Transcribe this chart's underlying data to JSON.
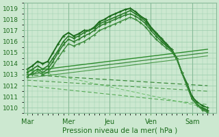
{
  "title": "",
  "xlabel": "Pression niveau de la mer( hPa )",
  "ylabel": "",
  "ylim": [
    1009.5,
    1019.5
  ],
  "yticks": [
    1010,
    1011,
    1012,
    1013,
    1014,
    1015,
    1016,
    1017,
    1018,
    1019
  ],
  "xtick_labels": [
    "Mar",
    "Mer",
    "Jeu",
    "Ven",
    "Sam"
  ],
  "xtick_positions": [
    0,
    48,
    96,
    144,
    192
  ],
  "xlim": [
    -4,
    220
  ],
  "bg_color": "#cce8d0",
  "plot_bg_color": "#cce8d0",
  "grid_color": "#99ccaa",
  "vline_positions": [
    0,
    48,
    96,
    144,
    192
  ],
  "lines": [
    {
      "x": [
        0,
        6,
        12,
        18,
        24,
        30,
        36,
        42,
        48,
        54,
        60,
        66,
        72,
        78,
        84,
        90,
        96,
        102,
        108,
        114,
        120,
        126,
        132,
        138,
        144,
        150,
        156,
        162,
        168,
        174,
        180,
        186,
        192,
        198,
        204,
        210
      ],
      "y": [
        1013.5,
        1013.8,
        1014.2,
        1014.0,
        1014.2,
        1015.0,
        1015.8,
        1016.5,
        1016.8,
        1016.5,
        1016.7,
        1017.0,
        1017.0,
        1017.3,
        1017.8,
        1018.0,
        1018.3,
        1018.5,
        1018.7,
        1018.9,
        1019.0,
        1018.7,
        1018.3,
        1018.0,
        1017.3,
        1016.8,
        1016.3,
        1015.8,
        1015.3,
        1014.5,
        1013.2,
        1012.2,
        1011.0,
        1010.5,
        1010.2,
        1010.0
      ],
      "style": "solid",
      "marker": "+",
      "lw": 1.4,
      "color": "#1a6b1a",
      "ms": 3.5
    },
    {
      "x": [
        0,
        6,
        12,
        18,
        24,
        30,
        36,
        42,
        48,
        54,
        60,
        66,
        72,
        78,
        84,
        90,
        96,
        102,
        108,
        114,
        120,
        126,
        132,
        138,
        144,
        150,
        156,
        162,
        168,
        174,
        180,
        186,
        192,
        198,
        204,
        210
      ],
      "y": [
        1013.2,
        1013.5,
        1013.8,
        1013.5,
        1013.8,
        1014.5,
        1015.2,
        1016.0,
        1016.5,
        1016.3,
        1016.5,
        1016.8,
        1017.0,
        1017.2,
        1017.6,
        1017.8,
        1018.0,
        1018.2,
        1018.4,
        1018.6,
        1018.8,
        1018.5,
        1018.2,
        1017.8,
        1017.2,
        1016.7,
        1016.2,
        1015.7,
        1015.3,
        1014.5,
        1013.2,
        1012.0,
        1010.8,
        1010.3,
        1010.0,
        1009.8
      ],
      "style": "solid",
      "marker": "+",
      "lw": 1.2,
      "color": "#2a7a2a",
      "ms": 3.0
    },
    {
      "x": [
        0,
        6,
        12,
        18,
        24,
        30,
        36,
        42,
        48,
        54,
        60,
        66,
        72,
        78,
        84,
        90,
        96,
        102,
        108,
        114,
        120,
        126,
        132,
        138,
        144,
        150,
        156,
        162,
        168,
        174,
        180,
        186,
        192,
        198,
        204,
        210
      ],
      "y": [
        1012.8,
        1013.2,
        1013.5,
        1013.2,
        1013.5,
        1014.2,
        1015.0,
        1015.7,
        1016.2,
        1016.0,
        1016.2,
        1016.5,
        1016.7,
        1017.0,
        1017.4,
        1017.6,
        1017.8,
        1018.0,
        1018.2,
        1018.4,
        1018.5,
        1018.3,
        1018.0,
        1017.6,
        1017.0,
        1016.5,
        1016.0,
        1015.6,
        1015.2,
        1014.5,
        1013.2,
        1012.0,
        1010.8,
        1010.3,
        1009.9,
        1009.7
      ],
      "style": "solid",
      "marker": "+",
      "lw": 1.1,
      "color": "#2a7a2a",
      "ms": 3.0
    },
    {
      "x": [
        0,
        6,
        12,
        18,
        24,
        30,
        36,
        42,
        48,
        54,
        60,
        66,
        72,
        78,
        84,
        90,
        96,
        102,
        108,
        114,
        120,
        126,
        132,
        138,
        144,
        150,
        156,
        162,
        168,
        174,
        180,
        186,
        192,
        198,
        204,
        210
      ],
      "y": [
        1013.0,
        1013.0,
        1013.3,
        1013.0,
        1013.2,
        1013.8,
        1014.5,
        1015.2,
        1015.8,
        1015.6,
        1015.8,
        1016.0,
        1016.3,
        1016.6,
        1017.0,
        1017.2,
        1017.4,
        1017.6,
        1017.8,
        1018.0,
        1018.2,
        1018.0,
        1017.7,
        1017.3,
        1016.7,
        1016.2,
        1015.8,
        1015.4,
        1015.1,
        1014.4,
        1013.2,
        1012.0,
        1010.8,
        1010.2,
        1009.8,
        1009.6
      ],
      "style": "solid",
      "marker": "+",
      "lw": 1.0,
      "color": "#3a8a3a",
      "ms": 2.5
    },
    {
      "x": [
        0,
        210
      ],
      "y": [
        1013.3,
        1015.3
      ],
      "style": "solid",
      "marker": "None",
      "lw": 1.0,
      "color": "#2d8c2d",
      "ms": 0
    },
    {
      "x": [
        0,
        210
      ],
      "y": [
        1013.0,
        1015.0
      ],
      "style": "solid",
      "marker": "None",
      "lw": 0.9,
      "color": "#3a8a3a",
      "ms": 0
    },
    {
      "x": [
        0,
        210
      ],
      "y": [
        1012.7,
        1014.7
      ],
      "style": "solid",
      "marker": "None",
      "lw": 0.8,
      "color": "#4a9a4a",
      "ms": 0
    },
    {
      "x": [
        0,
        210
      ],
      "y": [
        1013.0,
        1012.0
      ],
      "style": "dashed",
      "marker": "None",
      "lw": 0.9,
      "color": "#3a8a3a",
      "ms": 0
    },
    {
      "x": [
        0,
        210
      ],
      "y": [
        1012.5,
        1011.5
      ],
      "style": "dashed",
      "marker": "None",
      "lw": 0.8,
      "color": "#4a9a4a",
      "ms": 0
    },
    {
      "x": [
        0,
        210
      ],
      "y": [
        1012.0,
        1010.3
      ],
      "style": "dashed",
      "marker": "None",
      "lw": 0.8,
      "color": "#55aa55",
      "ms": 0
    },
    {
      "x": [
        0,
        210
      ],
      "y": [
        1013.5,
        1010.0
      ],
      "style": "dashed",
      "marker": "None",
      "lw": 0.7,
      "color": "#66bb66",
      "ms": 0
    }
  ]
}
